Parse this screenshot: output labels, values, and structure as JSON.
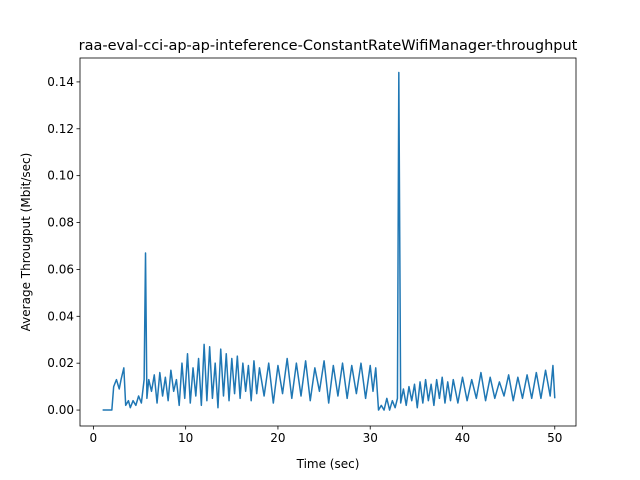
{
  "chart_data": {
    "type": "line",
    "title": "raa-eval-cci-ap-ap-inteference-ConstantRateWifiManager-throughput",
    "x_label": "Time (sec)",
    "y_label": "Average Througput (Mbit/sec)",
    "xlim": [
      -1.45,
      52.3
    ],
    "ylim": [
      -0.0068,
      0.1502
    ],
    "xticks": [
      0,
      10,
      20,
      30,
      40,
      50
    ],
    "yticks": [
      {
        "value": 0,
        "label": "0.00"
      },
      {
        "value": 0.02,
        "label": "0.02"
      },
      {
        "value": 0.04,
        "label": "0.04"
      },
      {
        "value": 0.06,
        "label": "0.06"
      },
      {
        "value": 0.08,
        "label": "0.08"
      },
      {
        "value": 0.1,
        "label": "0.10"
      },
      {
        "value": 0.12,
        "label": "0.12"
      },
      {
        "value": 0.14,
        "label": "0.14"
      }
    ],
    "x": [
      1.0,
      2.0,
      2.2,
      2.5,
      2.8,
      3.0,
      3.3,
      3.5,
      3.8,
      4.0,
      4.3,
      4.6,
      4.9,
      5.2,
      5.5,
      5.65,
      5.8,
      6.0,
      6.3,
      6.6,
      6.9,
      7.2,
      7.5,
      7.8,
      8.1,
      8.4,
      8.7,
      9.0,
      9.3,
      9.6,
      9.9,
      10.2,
      10.5,
      10.8,
      11.1,
      11.4,
      11.7,
      12.0,
      12.3,
      12.6,
      12.9,
      13.2,
      13.5,
      13.8,
      14.1,
      14.4,
      14.7,
      15.0,
      15.3,
      15.6,
      15.9,
      16.2,
      16.5,
      16.8,
      17.1,
      17.4,
      17.7,
      18.0,
      18.5,
      19.0,
      19.5,
      20.0,
      20.5,
      21.0,
      21.5,
      22.0,
      22.5,
      23.0,
      23.5,
      24.0,
      24.5,
      25.0,
      25.5,
      26.0,
      26.5,
      27.0,
      27.5,
      28.0,
      28.5,
      29.0,
      29.5,
      30.0,
      30.3,
      30.6,
      30.9,
      31.2,
      31.5,
      31.8,
      32.1,
      32.4,
      32.7,
      32.95,
      33.1,
      33.3,
      33.6,
      33.9,
      34.2,
      34.5,
      34.8,
      35.1,
      35.4,
      35.7,
      36.0,
      36.3,
      36.6,
      36.9,
      37.2,
      37.5,
      37.8,
      38.1,
      38.4,
      38.7,
      39.0,
      39.5,
      40.0,
      40.5,
      41.0,
      41.5,
      42.0,
      42.5,
      43.0,
      43.5,
      44.0,
      44.5,
      45.0,
      45.5,
      46.0,
      46.5,
      47.0,
      47.5,
      48.0,
      48.5,
      49.0,
      49.5,
      49.8,
      50.0
    ],
    "series": [
      {
        "color": "#1f77b4",
        "values": [
          0,
          0,
          0.01,
          0.013,
          0.009,
          0.013,
          0.018,
          0.002,
          0.004,
          0.001,
          0.004,
          0.002,
          0.006,
          0.003,
          0.013,
          0.067,
          0.005,
          0.013,
          0.008,
          0.015,
          0.003,
          0.016,
          0.006,
          0.014,
          0.004,
          0.017,
          0.008,
          0.013,
          0.002,
          0.02,
          0.005,
          0.024,
          0.003,
          0.018,
          0.006,
          0.022,
          0.002,
          0.028,
          0.004,
          0.027,
          0.005,
          0.02,
          0.001,
          0.026,
          0.006,
          0.024,
          0.004,
          0.022,
          0.007,
          0.023,
          0.005,
          0.02,
          0.008,
          0.019,
          0.004,
          0.021,
          0.007,
          0.018,
          0.006,
          0.02,
          0.003,
          0.019,
          0.007,
          0.022,
          0.005,
          0.02,
          0.006,
          0.021,
          0.004,
          0.018,
          0.008,
          0.021,
          0.003,
          0.019,
          0.006,
          0.02,
          0.005,
          0.019,
          0.007,
          0.02,
          0.005,
          0.019,
          0.008,
          0.018,
          0,
          0.002,
          0,
          0.005,
          0,
          0.004,
          0.001,
          0.005,
          0.144,
          0.003,
          0.009,
          0.002,
          0.01,
          0.004,
          0.011,
          0.001,
          0.012,
          0.003,
          0.013,
          0.004,
          0.011,
          0.002,
          0.013,
          0.005,
          0.014,
          0.003,
          0.012,
          0.004,
          0.013,
          0.003,
          0.014,
          0.004,
          0.013,
          0.005,
          0.016,
          0.004,
          0.014,
          0.005,
          0.012,
          0.006,
          0.015,
          0.004,
          0.014,
          0.005,
          0.015,
          0.005,
          0.016,
          0.005,
          0.017,
          0.006,
          0.019,
          0.005
        ]
      }
    ]
  }
}
